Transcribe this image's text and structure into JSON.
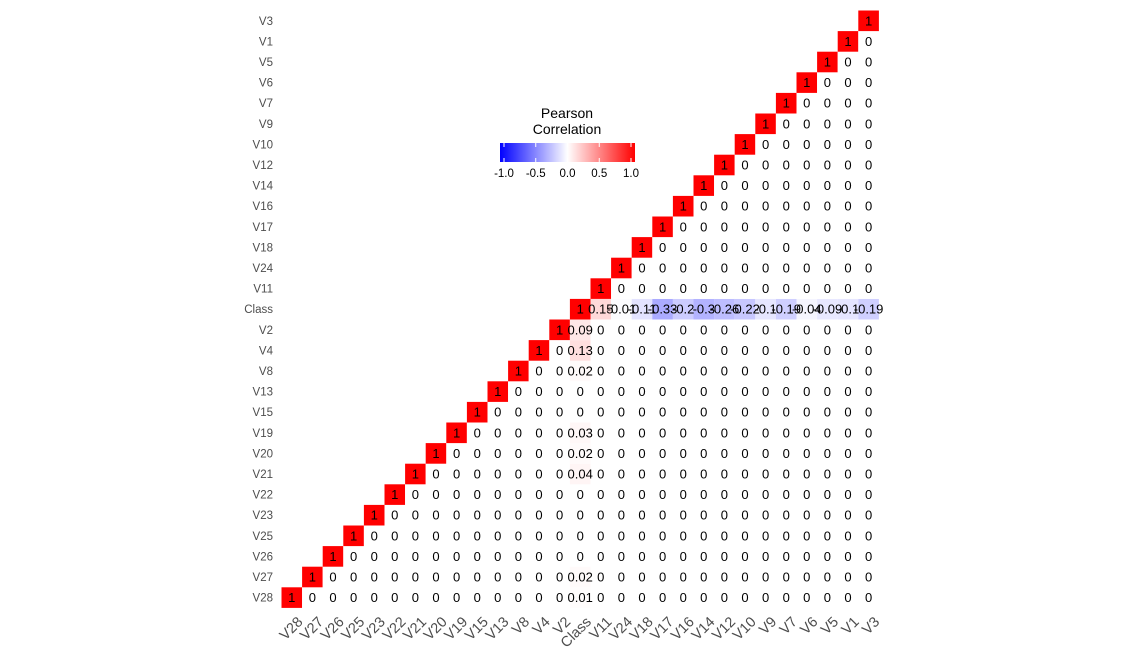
{
  "chart_data": {
    "type": "heatmap",
    "title": "",
    "xlabel": "",
    "ylabel": "",
    "variables": [
      "V28",
      "V27",
      "V26",
      "V25",
      "V23",
      "V22",
      "V21",
      "V20",
      "V19",
      "V15",
      "V13",
      "V8",
      "V4",
      "V2",
      "Class",
      "V11",
      "V24",
      "V18",
      "V17",
      "V16",
      "V14",
      "V12",
      "V10",
      "V9",
      "V7",
      "V6",
      "V5",
      "V1",
      "V3"
    ],
    "row_order_top_to_bottom": [
      "V3",
      "V1",
      "V5",
      "V6",
      "V7",
      "V9",
      "V10",
      "V12",
      "V14",
      "V16",
      "V17",
      "V18",
      "V24",
      "V11",
      "Class",
      "V2",
      "V4",
      "V8",
      "V13",
      "V15",
      "V19",
      "V20",
      "V21",
      "V22",
      "V23",
      "V25",
      "V26",
      "V27",
      "V28"
    ],
    "display": "upper-triangle",
    "diagonal_value": 1,
    "default_value": 0,
    "nonzero_correlations": [
      {
        "x": "V11",
        "y": "Class",
        "value": 0.15
      },
      {
        "x": "V24",
        "y": "Class",
        "value": -0.01
      },
      {
        "x": "V18",
        "y": "Class",
        "value": -0.11
      },
      {
        "x": "V17",
        "y": "Class",
        "value": -0.33
      },
      {
        "x": "V16",
        "y": "Class",
        "value": -0.2
      },
      {
        "x": "V14",
        "y": "Class",
        "value": -0.3
      },
      {
        "x": "V12",
        "y": "Class",
        "value": -0.26
      },
      {
        "x": "V10",
        "y": "Class",
        "value": -0.22
      },
      {
        "x": "V9",
        "y": "Class",
        "value": -0.1
      },
      {
        "x": "V7",
        "y": "Class",
        "value": -0.19
      },
      {
        "x": "V6",
        "y": "Class",
        "value": -0.04
      },
      {
        "x": "V5",
        "y": "Class",
        "value": -0.09
      },
      {
        "x": "V1",
        "y": "Class",
        "value": -0.1
      },
      {
        "x": "V3",
        "y": "Class",
        "value": -0.19
      },
      {
        "x": "Class",
        "y": "V2",
        "value": 0.09
      },
      {
        "x": "Class",
        "y": "V4",
        "value": 0.13
      },
      {
        "x": "Class",
        "y": "V8",
        "value": 0.02
      },
      {
        "x": "Class",
        "y": "V19",
        "value": 0.03
      },
      {
        "x": "Class",
        "y": "V20",
        "value": 0.02
      },
      {
        "x": "Class",
        "y": "V21",
        "value": 0.04
      },
      {
        "x": "Class",
        "y": "V27",
        "value": 0.02
      },
      {
        "x": "Class",
        "y": "V28",
        "value": 0.01
      }
    ],
    "legend": {
      "title_line1": "Pearson",
      "title_line2": "Correlation",
      "ticks": [
        "-1.0",
        "-0.5",
        "0.0",
        "0.5",
        "1.0"
      ],
      "tick_values": [
        -1.0,
        -0.5,
        0.0,
        0.5,
        1.0
      ],
      "low_color": "#0000ff",
      "mid_color": "#ffffff",
      "high_color": "#ff0000",
      "limits": [
        -1,
        1
      ],
      "placement": "upper-middle"
    },
    "grid": false
  }
}
